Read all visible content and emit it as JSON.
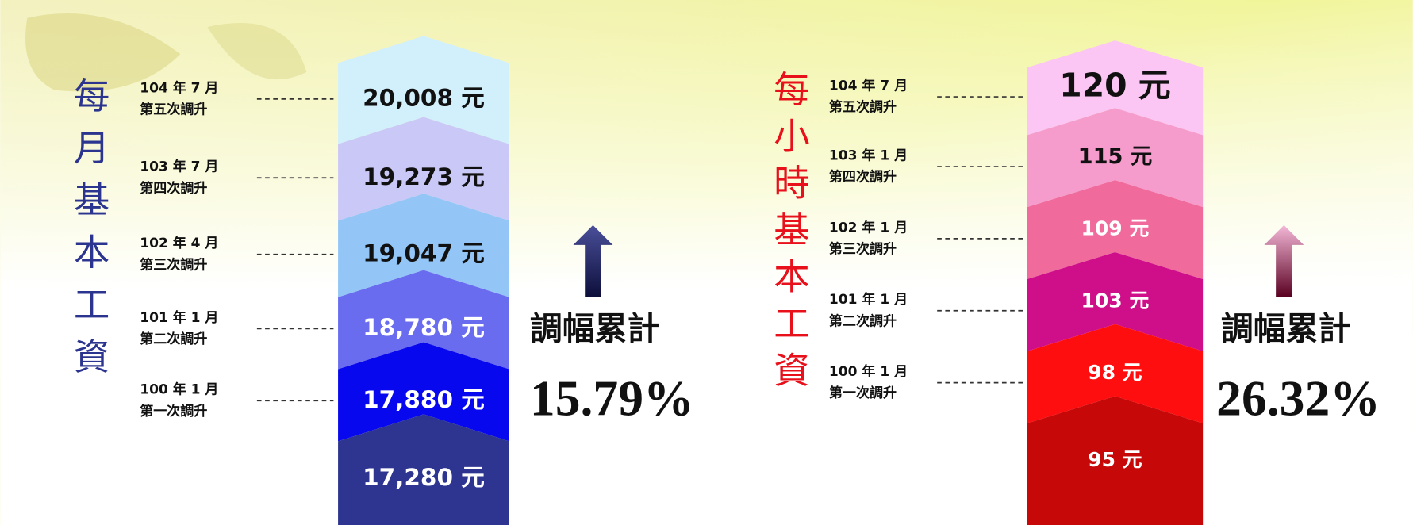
{
  "panels": [
    {
      "title": "每月基本工資",
      "steps": [
        {
          "date": "104 年 7 月",
          "round": "第五次調升",
          "value": "20,008 元"
        },
        {
          "date": "103 年 7 月",
          "round": "第四次調升",
          "value": "19,273 元"
        },
        {
          "date": "102 年 4 月",
          "round": "第三次調升",
          "value": "19,047 元"
        },
        {
          "date": "101 年 1 月",
          "round": "第二次調升",
          "value": "18,780 元"
        },
        {
          "date": "100 年 1 月",
          "round": "第一次調升",
          "value": "17,880 元"
        }
      ],
      "base": "17,280 元",
      "cumulative_label": "調幅累計",
      "cumulative": "15.79%"
    },
    {
      "title": "每小時基本工資",
      "steps": [
        {
          "date": "104 年 7 月",
          "round": "第五次調升",
          "value": "120 元"
        },
        {
          "date": "103 年 1 月",
          "round": "第四次調升",
          "value": "115 元"
        },
        {
          "date": "102 年 1 月",
          "round": "第三次調升",
          "value": "109 元"
        },
        {
          "date": "101 年 1 月",
          "round": "第二次調升",
          "value": "103 元"
        },
        {
          "date": "100 年 1 月",
          "round": "第一次調升",
          "value": "98 元"
        }
      ],
      "base": "95 元",
      "cumulative_label": "調幅累計",
      "cumulative": "26.32%"
    }
  ]
}
